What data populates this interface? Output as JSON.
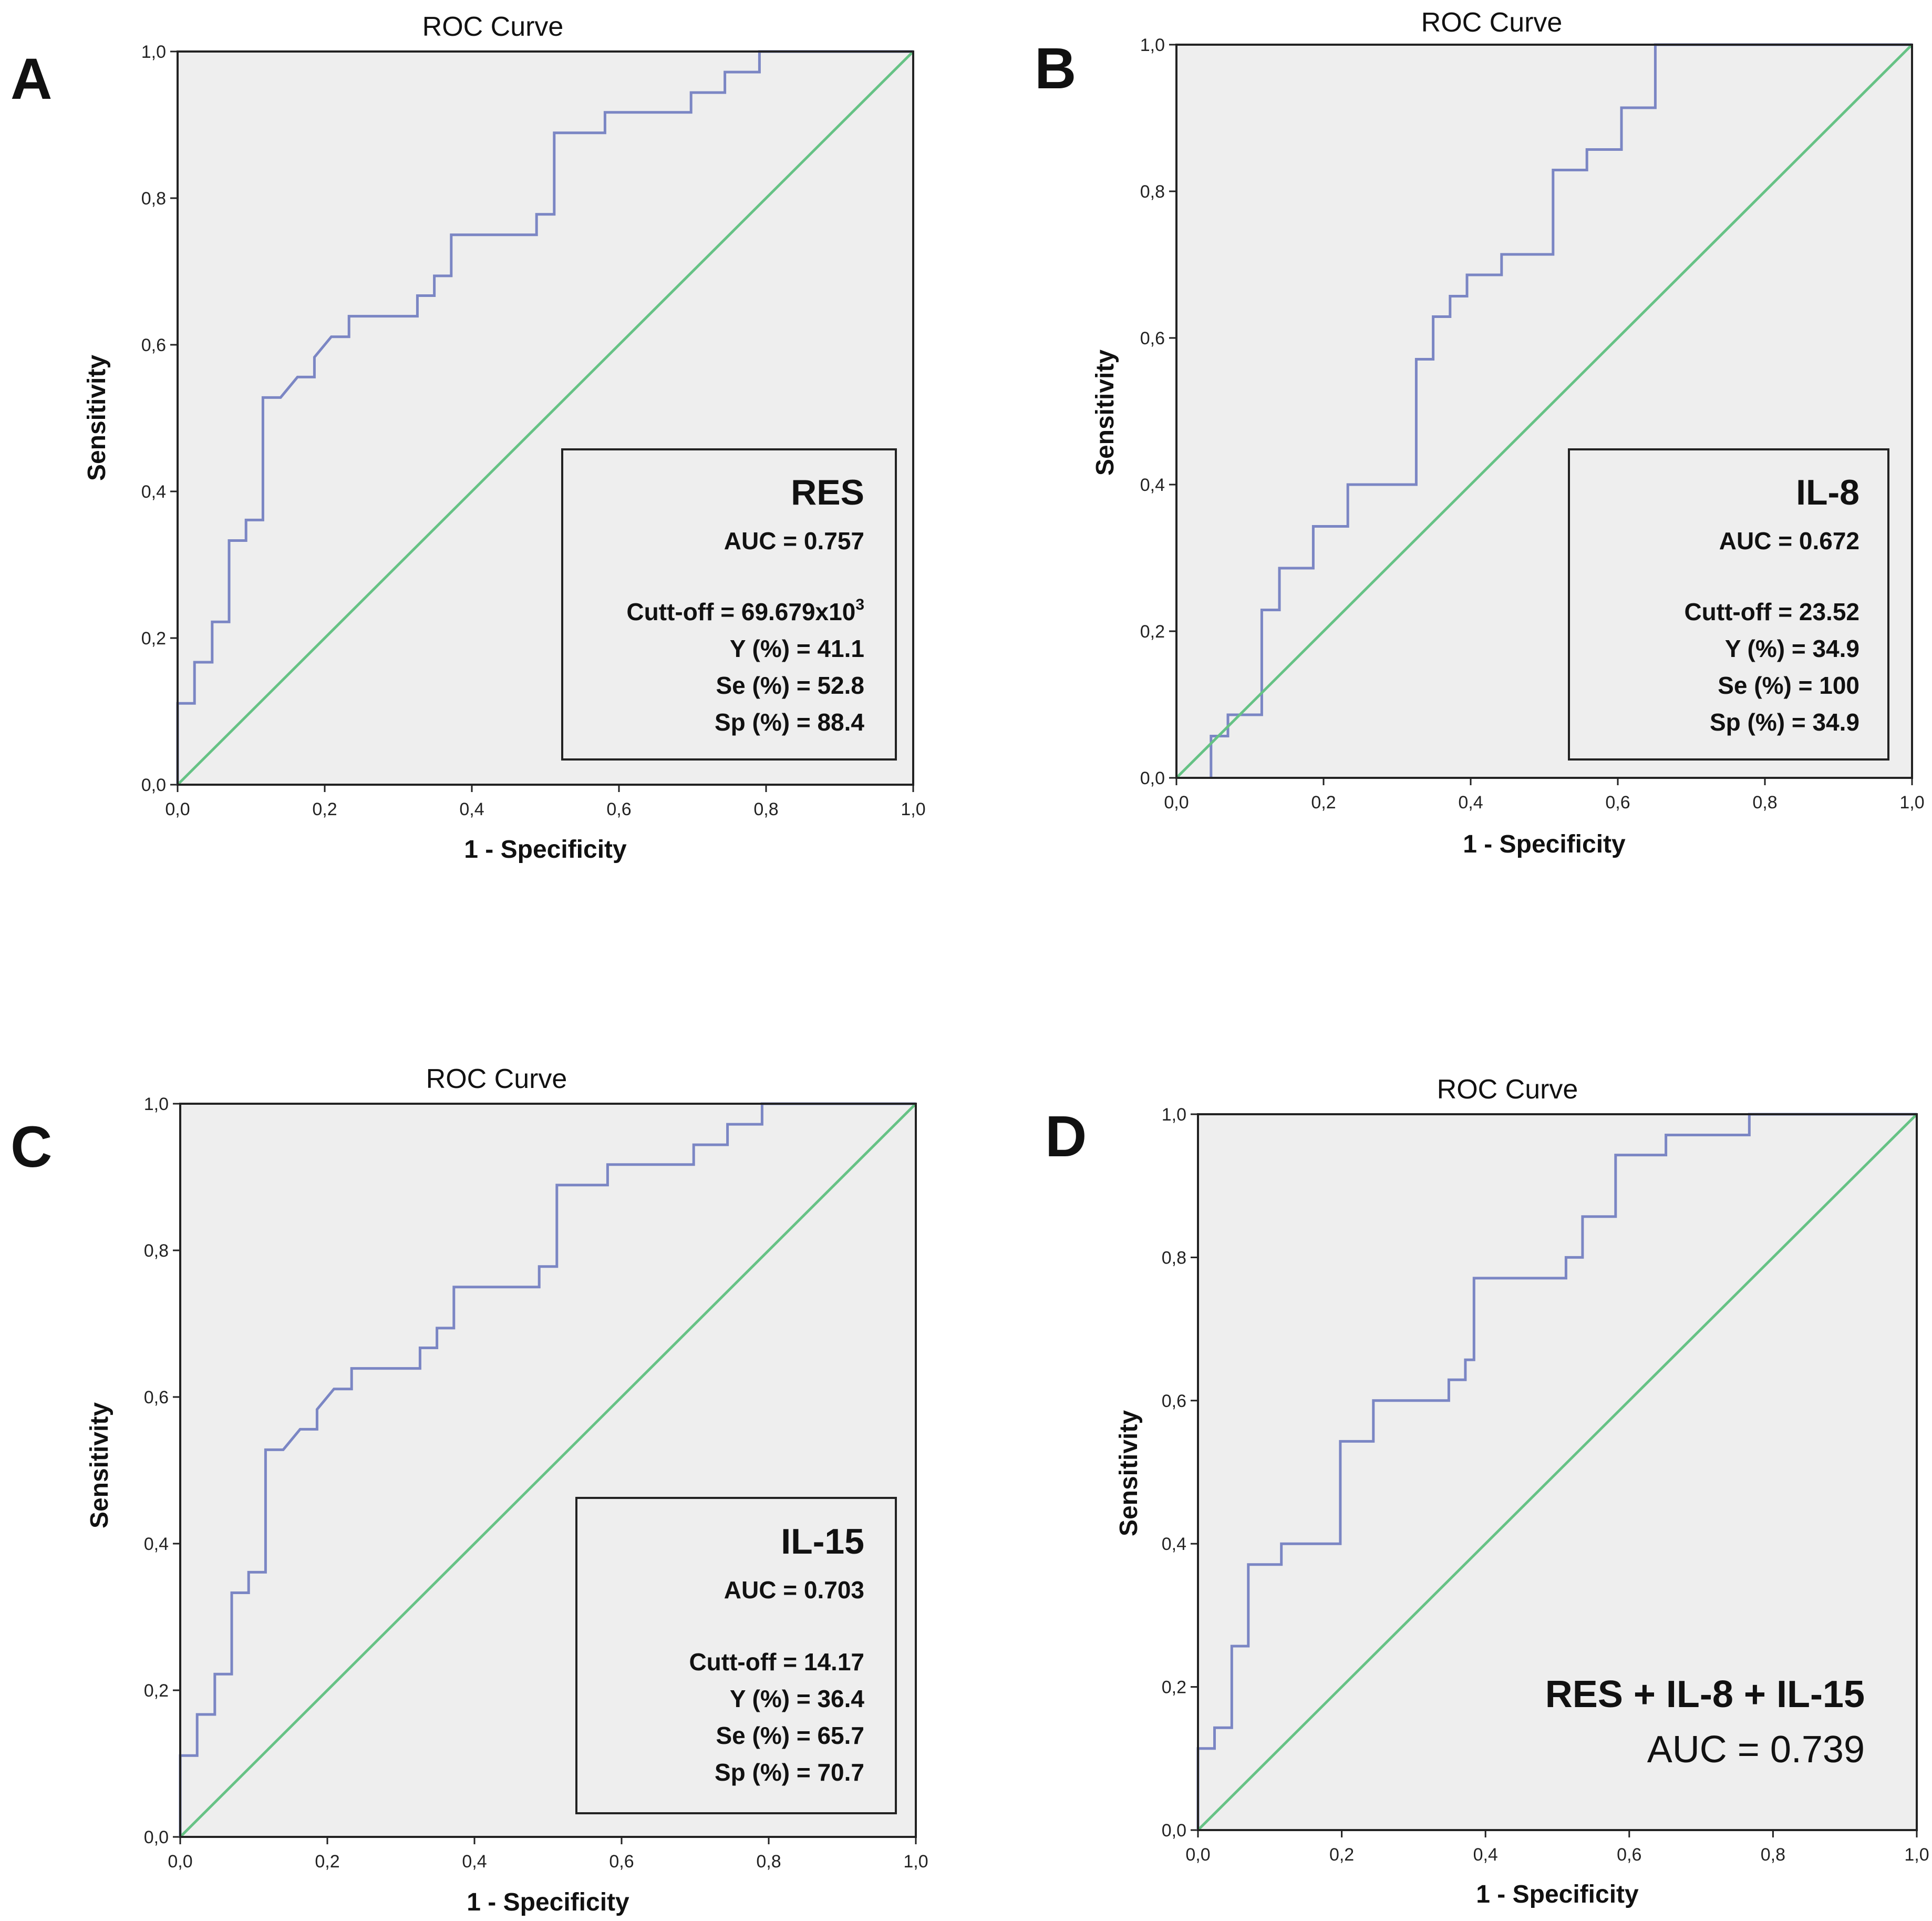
{
  "chart_data": [
    {
      "type": "line",
      "panel": "A",
      "title": "ROC Curve",
      "xlabel": "1 - Specificity",
      "ylabel": "Sensitivity",
      "xlim": [
        0,
        1
      ],
      "ylim": [
        0,
        1
      ],
      "x_ticks": [
        "0,0",
        "0,2",
        "0,4",
        "0,6",
        "0,8",
        "1,0"
      ],
      "y_ticks": [
        "0,0",
        "0,2",
        "0,4",
        "0,6",
        "0,8",
        "1,0"
      ],
      "legend": {
        "name": "RES",
        "lines": [
          "AUC = 0.757",
          "Cutt-off = 69.679x10",
          "Y (%) = 41.1",
          "Se (%) = 52.8",
          "Sp (%) = 88.4"
        ],
        "superscript": "3"
      },
      "series": [
        {
          "name": "ROC",
          "color": "#7b86c4",
          "points": [
            [
              0,
              0
            ],
            [
              0,
              0.111
            ],
            [
              0.023,
              0.111
            ],
            [
              0.023,
              0.167
            ],
            [
              0.047,
              0.167
            ],
            [
              0.047,
              0.222
            ],
            [
              0.07,
              0.222
            ],
            [
              0.07,
              0.333
            ],
            [
              0.093,
              0.333
            ],
            [
              0.093,
              0.361
            ],
            [
              0.116,
              0.361
            ],
            [
              0.116,
              0.528
            ],
            [
              0.14,
              0.528
            ],
            [
              0.163,
              0.556
            ],
            [
              0.186,
              0.556
            ],
            [
              0.186,
              0.583
            ],
            [
              0.209,
              0.611
            ],
            [
              0.233,
              0.611
            ],
            [
              0.233,
              0.639
            ],
            [
              0.326,
              0.639
            ],
            [
              0.326,
              0.667
            ],
            [
              0.349,
              0.667
            ],
            [
              0.349,
              0.694
            ],
            [
              0.372,
              0.694
            ],
            [
              0.372,
              0.75
            ],
            [
              0.488,
              0.75
            ],
            [
              0.488,
              0.778
            ],
            [
              0.512,
              0.778
            ],
            [
              0.512,
              0.889
            ],
            [
              0.581,
              0.889
            ],
            [
              0.581,
              0.917
            ],
            [
              0.698,
              0.917
            ],
            [
              0.698,
              0.944
            ],
            [
              0.744,
              0.944
            ],
            [
              0.744,
              0.972
            ],
            [
              0.791,
              0.972
            ],
            [
              0.791,
              1.0
            ],
            [
              1.0,
              1.0
            ]
          ]
        },
        {
          "name": "Reference",
          "color": "#66c285",
          "points": [
            [
              0,
              0
            ],
            [
              1,
              1
            ]
          ]
        }
      ]
    },
    {
      "type": "line",
      "panel": "B",
      "title": "ROC Curve",
      "xlabel": "1 - Specificity",
      "ylabel": "Sensitivity",
      "xlim": [
        0,
        1
      ],
      "ylim": [
        0,
        1
      ],
      "x_ticks": [
        "0,0",
        "0,2",
        "0,4",
        "0,6",
        "0,8",
        "1,0"
      ],
      "y_ticks": [
        "0,0",
        "0,2",
        "0,4",
        "0,6",
        "0,8",
        "1,0"
      ],
      "legend": {
        "name": "IL-8",
        "lines": [
          "AUC = 0.672",
          "Cutt-off = 23.52",
          "Y (%) = 34.9",
          "Se (%) = 100",
          "Sp (%) = 34.9"
        ]
      },
      "series": [
        {
          "name": "ROC",
          "color": "#7b86c4",
          "points": [
            [
              0.047,
              0
            ],
            [
              0.047,
              0.057
            ],
            [
              0.07,
              0.057
            ],
            [
              0.07,
              0.086
            ],
            [
              0.116,
              0.086
            ],
            [
              0.116,
              0.229
            ],
            [
              0.14,
              0.229
            ],
            [
              0.14,
              0.286
            ],
            [
              0.186,
              0.286
            ],
            [
              0.186,
              0.343
            ],
            [
              0.233,
              0.343
            ],
            [
              0.233,
              0.4
            ],
            [
              0.326,
              0.4
            ],
            [
              0.326,
              0.571
            ],
            [
              0.349,
              0.571
            ],
            [
              0.349,
              0.629
            ],
            [
              0.372,
              0.629
            ],
            [
              0.372,
              0.657
            ],
            [
              0.395,
              0.657
            ],
            [
              0.395,
              0.686
            ],
            [
              0.442,
              0.686
            ],
            [
              0.442,
              0.714
            ],
            [
              0.512,
              0.714
            ],
            [
              0.512,
              0.829
            ],
            [
              0.558,
              0.829
            ],
            [
              0.558,
              0.857
            ],
            [
              0.605,
              0.857
            ],
            [
              0.605,
              0.914
            ],
            [
              0.651,
              0.914
            ],
            [
              0.651,
              1.0
            ],
            [
              1.0,
              1.0
            ]
          ]
        },
        {
          "name": "Reference",
          "color": "#66c285",
          "points": [
            [
              0,
              0
            ],
            [
              1,
              1
            ]
          ]
        }
      ]
    },
    {
      "type": "line",
      "panel": "C",
      "title": "ROC Curve",
      "xlabel": "1 - Specificity",
      "ylabel": "Sensitivity",
      "xlim": [
        0,
        1
      ],
      "ylim": [
        0,
        1
      ],
      "x_ticks": [
        "0,0",
        "0,2",
        "0,4",
        "0,6",
        "0,8",
        "1,0"
      ],
      "y_ticks": [
        "0,0",
        "0,2",
        "0,4",
        "0,6",
        "0,8",
        "1,0"
      ],
      "legend": {
        "name": "IL-15",
        "lines": [
          "AUC = 0.703",
          "Cutt-off = 14.17",
          "Y (%) = 36.4",
          "Se (%) = 65.7",
          "Sp (%) = 70.7"
        ]
      },
      "series": [
        {
          "name": "ROC",
          "color": "#7b86c4",
          "points": [
            [
              0,
              0
            ],
            [
              0,
              0.111
            ],
            [
              0.023,
              0.111
            ],
            [
              0.023,
              0.167
            ],
            [
              0.047,
              0.167
            ],
            [
              0.047,
              0.222
            ],
            [
              0.07,
              0.222
            ],
            [
              0.07,
              0.333
            ],
            [
              0.093,
              0.333
            ],
            [
              0.093,
              0.361
            ],
            [
              0.116,
              0.361
            ],
            [
              0.116,
              0.528
            ],
            [
              0.14,
              0.528
            ],
            [
              0.163,
              0.556
            ],
            [
              0.186,
              0.556
            ],
            [
              0.186,
              0.583
            ],
            [
              0.209,
              0.611
            ],
            [
              0.233,
              0.611
            ],
            [
              0.233,
              0.639
            ],
            [
              0.326,
              0.639
            ],
            [
              0.326,
              0.667
            ],
            [
              0.349,
              0.667
            ],
            [
              0.349,
              0.694
            ],
            [
              0.372,
              0.694
            ],
            [
              0.372,
              0.75
            ],
            [
              0.488,
              0.75
            ],
            [
              0.488,
              0.778
            ],
            [
              0.512,
              0.778
            ],
            [
              0.512,
              0.889
            ],
            [
              0.581,
              0.889
            ],
            [
              0.581,
              0.917
            ],
            [
              0.698,
              0.917
            ],
            [
              0.698,
              0.944
            ],
            [
              0.744,
              0.944
            ],
            [
              0.744,
              0.972
            ],
            [
              0.791,
              0.972
            ],
            [
              0.791,
              1.0
            ],
            [
              1.0,
              1.0
            ]
          ]
        },
        {
          "name": "Reference",
          "color": "#66c285",
          "points": [
            [
              0,
              0
            ],
            [
              1,
              1
            ]
          ]
        }
      ]
    },
    {
      "type": "line",
      "panel": "D",
      "title": "ROC Curve",
      "xlabel": "1 - Specificity",
      "ylabel": "Sensitivity",
      "xlim": [
        0,
        1
      ],
      "ylim": [
        0,
        1
      ],
      "x_ticks": [
        "0,0",
        "0,2",
        "0,4",
        "0,6",
        "0,8",
        "1,0"
      ],
      "y_ticks": [
        "0,0",
        "0,2",
        "0,4",
        "0,6",
        "0,8",
        "1,0"
      ],
      "legend": {
        "name": "RES + IL-8 + IL-15",
        "lines": [
          "AUC = 0.739"
        ]
      },
      "series": [
        {
          "name": "ROC",
          "color": "#7b86c4",
          "points": [
            [
              0,
              0
            ],
            [
              0,
              0.114
            ],
            [
              0.023,
              0.114
            ],
            [
              0.023,
              0.143
            ],
            [
              0.047,
              0.143
            ],
            [
              0.047,
              0.257
            ],
            [
              0.07,
              0.257
            ],
            [
              0.07,
              0.371
            ],
            [
              0.116,
              0.371
            ],
            [
              0.116,
              0.4
            ],
            [
              0.198,
              0.4
            ],
            [
              0.198,
              0.543
            ],
            [
              0.244,
              0.543
            ],
            [
              0.244,
              0.6
            ],
            [
              0.349,
              0.6
            ],
            [
              0.349,
              0.629
            ],
            [
              0.372,
              0.629
            ],
            [
              0.372,
              0.657
            ],
            [
              0.384,
              0.657
            ],
            [
              0.384,
              0.771
            ],
            [
              0.512,
              0.771
            ],
            [
              0.512,
              0.8
            ],
            [
              0.535,
              0.8
            ],
            [
              0.535,
              0.857
            ],
            [
              0.581,
              0.857
            ],
            [
              0.581,
              0.943
            ],
            [
              0.651,
              0.943
            ],
            [
              0.651,
              0.971
            ],
            [
              0.767,
              0.971
            ],
            [
              0.767,
              1.0
            ],
            [
              1.0,
              1.0
            ]
          ]
        },
        {
          "name": "Reference",
          "color": "#66c285",
          "points": [
            [
              0,
              0
            ],
            [
              1,
              1
            ]
          ]
        }
      ]
    }
  ]
}
